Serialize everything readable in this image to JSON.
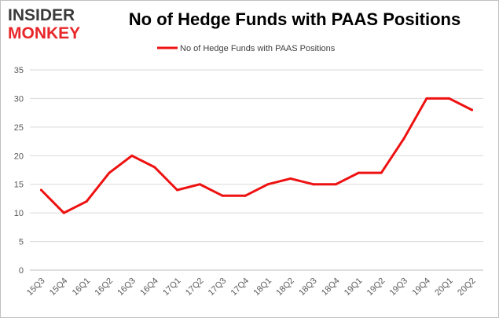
{
  "logo": {
    "line1": "INSIDER",
    "line2": "MONKEY"
  },
  "colors": {
    "series": "#ee1111",
    "logo_dark": "#3a3a3a",
    "logo_red": "#e8262a",
    "grid": "#d9d9d9",
    "axis": "#bfbfbf"
  },
  "chart_data": {
    "type": "line",
    "title": "No of Hedge Funds with PAAS Positions",
    "categories": [
      "15Q3",
      "15Q4",
      "16Q1",
      "16Q2",
      "16Q3",
      "16Q4",
      "17Q1",
      "17Q2",
      "17Q3",
      "17Q4",
      "18Q1",
      "18Q2",
      "18Q3",
      "18Q4",
      "19Q1",
      "19Q2",
      "19Q3",
      "19Q4",
      "20Q1",
      "20Q2"
    ],
    "series": [
      {
        "name": "No of Hedge Funds with PAAS Positions",
        "values": [
          14,
          10,
          12,
          17,
          20,
          18,
          14,
          15,
          13,
          13,
          15,
          16,
          15,
          15,
          17,
          17,
          23,
          30,
          30,
          28
        ]
      }
    ],
    "yticks": [
      0,
      5,
      10,
      15,
      20,
      25,
      30,
      35
    ],
    "ylim": [
      0,
      35
    ],
    "xlabel": "",
    "ylabel": "",
    "grid": true,
    "legend": "top-center"
  }
}
